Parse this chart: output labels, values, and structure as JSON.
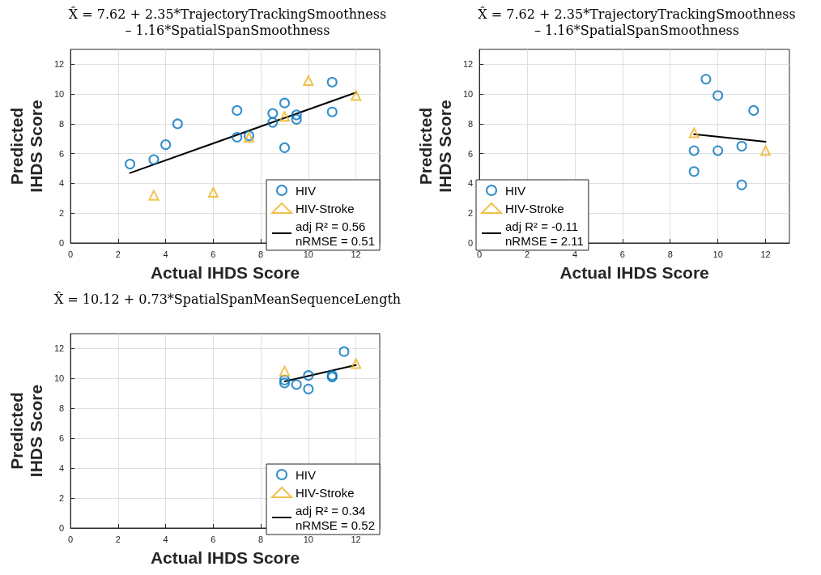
{
  "chart_data": [
    {
      "type": "scatter",
      "title": "X̂ = 7.62 + 2.35*TrajectoryTrackingSmoothness\n– 1.16*SpatialSpanSmoothness",
      "xlabel": "Actual IHDS Score",
      "ylabel": "Predicted\nIHDS Score",
      "xlim": [
        0,
        13
      ],
      "ylim": [
        0,
        13
      ],
      "xticks": [
        0,
        2,
        4,
        6,
        8,
        10,
        12
      ],
      "yticks": [
        0,
        2,
        4,
        6,
        8,
        10,
        12
      ],
      "grid": true,
      "legend": "bottom right",
      "series": [
        {
          "name": "HIV",
          "marker": "circle",
          "color": "#0072bd",
          "x": [
            2.5,
            3.5,
            4,
            4.5,
            7,
            7,
            7.5,
            8.5,
            8.5,
            9,
            9,
            9.5,
            9.5,
            11,
            11
          ],
          "values": [
            5.3,
            5.6,
            6.6,
            8.0,
            8.9,
            7.1,
            7.2,
            8.7,
            8.1,
            9.4,
            6.4,
            8.6,
            8.3,
            10.8,
            8.8
          ]
        },
        {
          "name": "HIV-Stroke",
          "marker": "triangle",
          "color": "#edb120",
          "x": [
            3.5,
            6,
            7.5,
            9,
            10,
            12
          ],
          "values": [
            3.2,
            3.4,
            7.1,
            8.5,
            10.9,
            9.9
          ]
        },
        {
          "name": "adj R² = 0.56\nnRMSE = 0.51",
          "type": "line",
          "marker": "none",
          "color": "#000000",
          "x": [
            2.5,
            12
          ],
          "values": [
            4.7,
            10.1
          ]
        }
      ]
    },
    {
      "type": "scatter",
      "title": "X̂ = 7.62 + 2.35*TrajectoryTrackingSmoothness\n– 1.16*SpatialSpanSmoothness",
      "xlabel": "Actual IHDS Score",
      "ylabel": "Predicted\nIHDS Score",
      "xlim": [
        0,
        13
      ],
      "ylim": [
        0,
        13
      ],
      "xticks": [
        0,
        2,
        4,
        6,
        8,
        10,
        12
      ],
      "yticks": [
        0,
        2,
        4,
        6,
        8,
        10,
        12
      ],
      "grid": true,
      "legend": "bottom left",
      "series": [
        {
          "name": "HIV",
          "marker": "circle",
          "color": "#0072bd",
          "x": [
            9.5,
            10,
            11.5,
            9,
            10,
            11,
            9,
            11
          ],
          "values": [
            11.0,
            9.9,
            8.9,
            6.2,
            6.2,
            6.5,
            4.8,
            3.9
          ]
        },
        {
          "name": "HIV-Stroke",
          "marker": "triangle",
          "color": "#edb120",
          "x": [
            9,
            12
          ],
          "values": [
            7.4,
            6.2
          ]
        },
        {
          "name": "adj R² = -0.11\nnRMSE = 2.11",
          "type": "line",
          "marker": "none",
          "color": "#000000",
          "x": [
            9,
            12
          ],
          "values": [
            7.3,
            6.8
          ]
        }
      ]
    },
    {
      "type": "scatter",
      "title": "X̂ = 10.12 + 0.73*SpatialSpanMeanSequenceLength",
      "xlabel": "Actual IHDS Score",
      "ylabel": "Predicted\nIHDS Score",
      "xlim": [
        0,
        13
      ],
      "ylim": [
        0,
        13
      ],
      "xticks": [
        0,
        2,
        4,
        6,
        8,
        10,
        12
      ],
      "yticks": [
        0,
        2,
        4,
        6,
        8,
        10,
        12
      ],
      "grid": true,
      "legend": "bottom right",
      "series": [
        {
          "name": "HIV",
          "marker": "circle",
          "color": "#0072bd",
          "x": [
            9,
            9,
            9.5,
            10,
            10,
            11,
            11,
            11.5
          ],
          "values": [
            9.9,
            9.7,
            9.6,
            10.2,
            9.3,
            10.2,
            10.1,
            11.8
          ]
        },
        {
          "name": "HIV-Stroke",
          "marker": "triangle",
          "color": "#edb120",
          "x": [
            9,
            12
          ],
          "values": [
            10.5,
            11.0
          ]
        },
        {
          "name": "adj R² = 0.34\nnRMSE = 0.52",
          "type": "line",
          "marker": "none",
          "color": "#000000",
          "x": [
            9,
            12
          ],
          "values": [
            9.8,
            10.9
          ]
        }
      ]
    }
  ]
}
